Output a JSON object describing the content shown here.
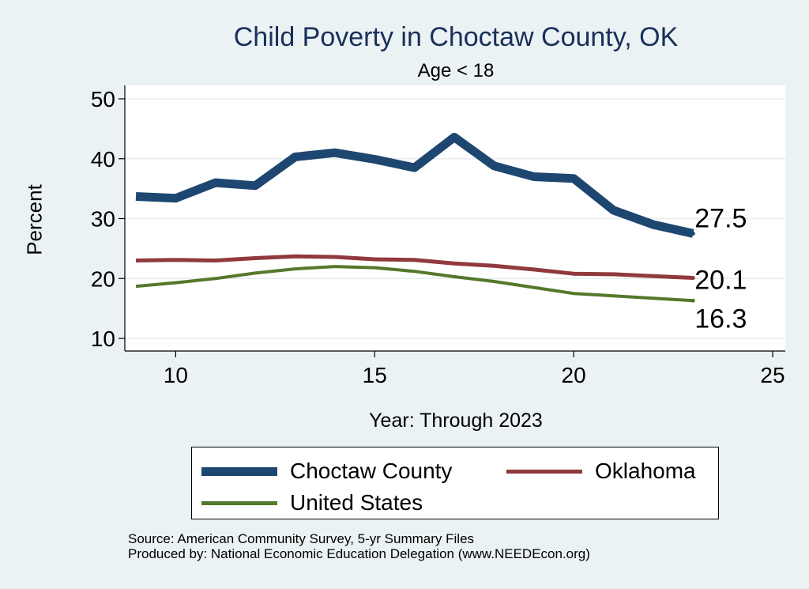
{
  "chart_data": {
    "type": "line",
    "title": "Child Poverty in Choctaw County, OK",
    "subtitle": "Age < 18",
    "xlabel": "Year: Through 2023",
    "ylabel": "Percent",
    "xlim": [
      9,
      25
    ],
    "ylim": [
      10,
      50
    ],
    "x_ticks": [
      10,
      15,
      20,
      25
    ],
    "y_ticks": [
      10,
      20,
      30,
      40,
      50
    ],
    "grid": true,
    "legend_position": "bottom",
    "x": [
      9,
      10,
      11,
      12,
      13,
      14,
      15,
      16,
      17,
      18,
      19,
      20,
      21,
      22,
      23
    ],
    "series": [
      {
        "name": "Choctaw County",
        "color": "#1d4770",
        "values": [
          33.7,
          33.4,
          36.0,
          35.5,
          40.3,
          41.0,
          39.9,
          38.5,
          43.6,
          38.8,
          37.0,
          36.7,
          31.4,
          29.0,
          27.5
        ],
        "end_label": "27.5"
      },
      {
        "name": "Oklahoma",
        "color": "#903a3d",
        "values": [
          23.0,
          23.1,
          23.0,
          23.4,
          23.7,
          23.6,
          23.2,
          23.1,
          22.5,
          22.1,
          21.5,
          20.8,
          20.7,
          20.4,
          20.1
        ],
        "end_label": "20.1"
      },
      {
        "name": "United States",
        "color": "#55782c",
        "values": [
          18.7,
          19.3,
          20.0,
          20.9,
          21.6,
          22.0,
          21.8,
          21.2,
          20.3,
          19.5,
          18.5,
          17.5,
          17.1,
          16.7,
          16.3
        ],
        "end_label": "16.3"
      }
    ]
  },
  "source": {
    "line1": "Source: American Community Survey, 5-yr Summary Files",
    "line2": "Produced by: National Economic Education Delegation (www.NEEDEcon.org)"
  }
}
